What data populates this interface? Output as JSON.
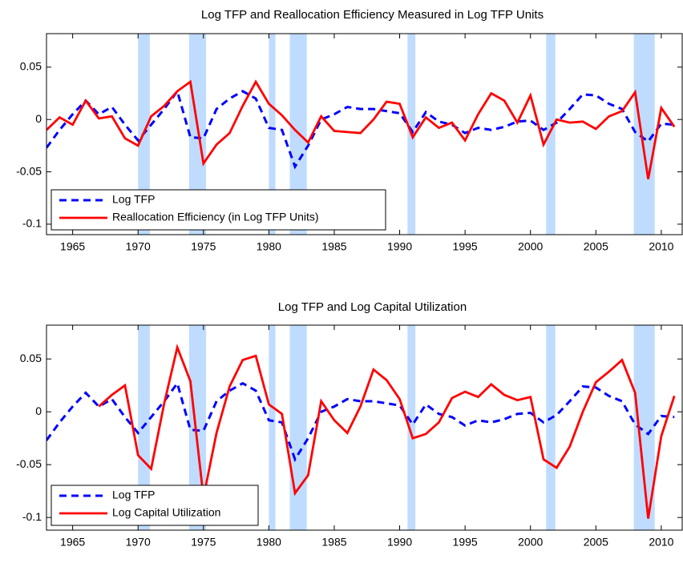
{
  "chart_data": [
    {
      "type": "line",
      "title": "Log TFP and Reallocation Efficiency Measured in Log TFP Units",
      "x": [
        1963,
        1964,
        1965,
        1966,
        1967,
        1968,
        1969,
        1970,
        1971,
        1972,
        1973,
        1974,
        1975,
        1976,
        1977,
        1978,
        1979,
        1980,
        1981,
        1982,
        1983,
        1984,
        1985,
        1986,
        1987,
        1988,
        1989,
        1990,
        1991,
        1992,
        1993,
        1994,
        1995,
        1996,
        1997,
        1998,
        1999,
        2000,
        2001,
        2002,
        2003,
        2004,
        2005,
        2006,
        2007,
        2008,
        2009,
        2010,
        2011
      ],
      "series": [
        {
          "name": "Log TFP",
          "color": "#0000ff",
          "line_style": "dashed",
          "values": [
            -0.027,
            -0.01,
            0.005,
            0.018,
            0.005,
            0.012,
            -0.005,
            -0.02,
            -0.005,
            0.01,
            0.027,
            -0.017,
            -0.018,
            0.01,
            0.02,
            0.027,
            0.02,
            -0.008,
            -0.01,
            -0.045,
            -0.025,
            0.0,
            0.005,
            0.012,
            0.01,
            0.01,
            0.008,
            0.006,
            -0.012,
            0.007,
            -0.002,
            -0.005,
            -0.013,
            -0.008,
            -0.01,
            -0.007,
            -0.002,
            -0.001,
            -0.01,
            -0.003,
            0.01,
            0.024,
            0.023,
            0.015,
            0.01,
            -0.012,
            -0.021,
            -0.004,
            -0.005
          ]
        },
        {
          "name": "Reallocation Efficiency (in Log TFP Units)",
          "color": "#ff0000",
          "line_style": "solid",
          "values": [
            -0.01,
            0.002,
            -0.005,
            0.018,
            0.001,
            0.003,
            -0.018,
            -0.025,
            0.003,
            0.013,
            0.027,
            0.036,
            -0.042,
            -0.024,
            -0.013,
            0.013,
            0.036,
            0.015,
            0.004,
            -0.01,
            -0.022,
            0.003,
            -0.011,
            -0.012,
            -0.013,
            0.0,
            0.017,
            0.015,
            -0.017,
            0.002,
            -0.008,
            -0.003,
            -0.02,
            0.005,
            0.025,
            0.018,
            -0.003,
            0.023,
            -0.024,
            0.0,
            -0.003,
            -0.002,
            -0.009,
            0.003,
            0.008,
            0.026,
            -0.057,
            0.011,
            -0.007
          ]
        }
      ],
      "recessions": [
        [
          1970,
          1970.9
        ],
        [
          1973.9,
          1975.2
        ],
        [
          1980,
          1980.5
        ],
        [
          1981.6,
          1982.9
        ],
        [
          1990.6,
          1991.2
        ],
        [
          2001.2,
          2001.9
        ],
        [
          2007.9,
          2009.5
        ]
      ],
      "recession_color": "#bfdcff",
      "xlim": [
        1963,
        2011.6
      ],
      "xticks": [
        1965,
        1970,
        1975,
        1980,
        1985,
        1990,
        1995,
        2000,
        2005,
        2010
      ],
      "ylim": [
        -0.11,
        0.082
      ],
      "yticks": [
        -0.1,
        -0.05,
        0,
        0.05
      ],
      "legend": "lower left"
    },
    {
      "type": "line",
      "title": "Log TFP and Log Capital Utilization",
      "x": [
        1963,
        1964,
        1965,
        1966,
        1967,
        1968,
        1969,
        1970,
        1971,
        1972,
        1973,
        1974,
        1975,
        1976,
        1977,
        1978,
        1979,
        1980,
        1981,
        1982,
        1983,
        1984,
        1985,
        1986,
        1987,
        1988,
        1989,
        1990,
        1991,
        1992,
        1993,
        1994,
        1995,
        1996,
        1997,
        1998,
        1999,
        2000,
        2001,
        2002,
        2003,
        2004,
        2005,
        2006,
        2007,
        2008,
        2009,
        2010,
        2011
      ],
      "series": [
        {
          "name": "Log TFP",
          "color": "#0000ff",
          "line_style": "dashed",
          "values": [
            -0.027,
            -0.01,
            0.005,
            0.018,
            0.005,
            0.012,
            -0.005,
            -0.02,
            -0.005,
            0.01,
            0.027,
            -0.017,
            -0.018,
            0.01,
            0.02,
            0.027,
            0.02,
            -0.008,
            -0.01,
            -0.045,
            -0.025,
            0.0,
            0.005,
            0.012,
            0.01,
            0.01,
            0.008,
            0.006,
            -0.012,
            0.007,
            -0.002,
            -0.005,
            -0.013,
            -0.008,
            -0.01,
            -0.007,
            -0.002,
            -0.001,
            -0.01,
            -0.003,
            0.01,
            0.024,
            0.023,
            0.015,
            0.01,
            -0.012,
            -0.021,
            -0.004,
            -0.005
          ]
        },
        {
          "name": "Log Capital Utilization",
          "color": "#ff0000",
          "line_style": "solid",
          "values": [
            null,
            null,
            null,
            null,
            0.005,
            0.016,
            0.025,
            -0.041,
            -0.054,
            0.008,
            0.061,
            0.029,
            -0.081,
            -0.02,
            0.024,
            0.049,
            0.053,
            0.007,
            -0.002,
            -0.077,
            -0.06,
            0.01,
            -0.008,
            -0.02,
            0.005,
            0.04,
            0.03,
            0.012,
            -0.025,
            -0.021,
            -0.01,
            0.013,
            0.019,
            0.014,
            0.026,
            0.016,
            0.011,
            0.014,
            -0.045,
            -0.053,
            -0.033,
            0.0,
            0.028,
            0.038,
            0.049,
            0.018,
            -0.101,
            -0.023,
            0.015
          ]
        }
      ],
      "recessions": [
        [
          1970,
          1970.9
        ],
        [
          1973.9,
          1975.2
        ],
        [
          1980,
          1980.5
        ],
        [
          1981.6,
          1982.9
        ],
        [
          1990.6,
          1991.2
        ],
        [
          2001.2,
          2001.9
        ],
        [
          2007.9,
          2009.5
        ]
      ],
      "recession_color": "#bfdcff",
      "xlim": [
        1963,
        2011.6
      ],
      "xticks": [
        1965,
        1970,
        1975,
        1980,
        1985,
        1990,
        1995,
        2000,
        2005,
        2010
      ],
      "ylim": [
        -0.112,
        0.082
      ],
      "yticks": [
        -0.1,
        -0.05,
        0,
        0.05
      ],
      "legend": "lower left"
    }
  ]
}
